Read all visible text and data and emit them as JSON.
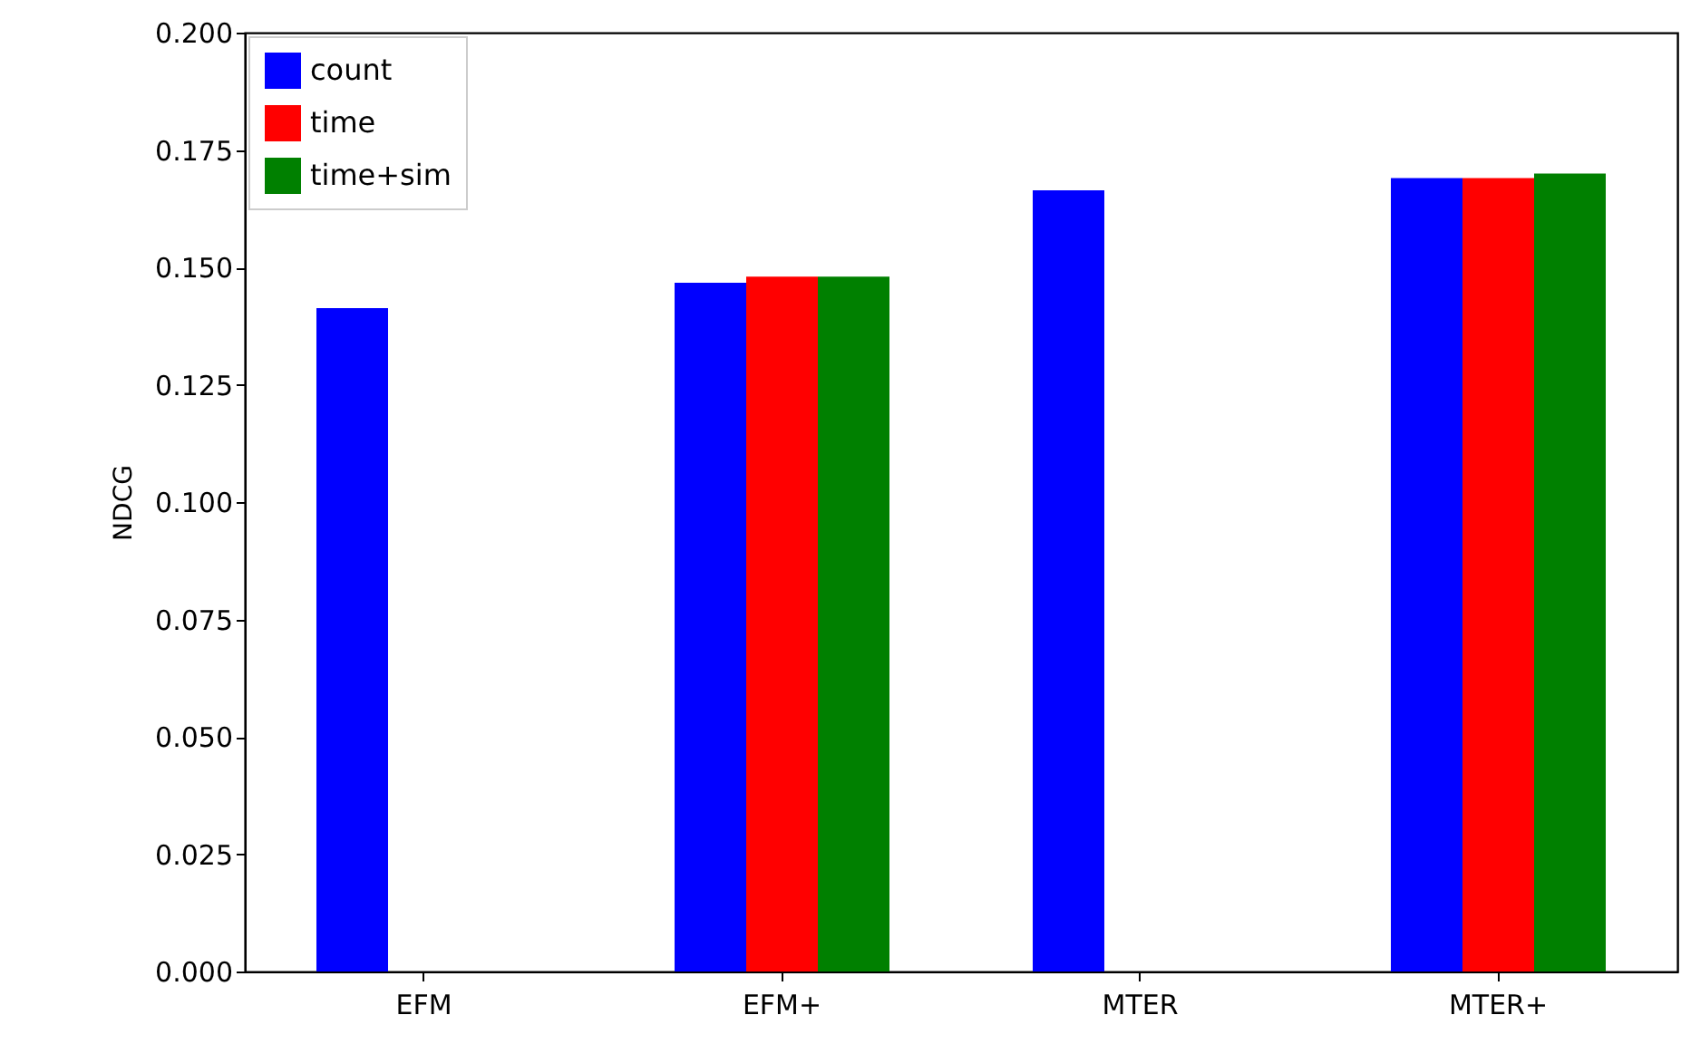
{
  "chart_data": {
    "type": "bar",
    "ylabel": "NDCG",
    "categories": [
      "EFM",
      "EFM+",
      "MTER",
      "MTER+"
    ],
    "series": [
      {
        "name": "count",
        "color": "#0000ff",
        "values": [
          0.1413,
          0.1467,
          0.1664,
          0.169
        ]
      },
      {
        "name": "time",
        "color": "#ff0000",
        "values": [
          null,
          0.148,
          null,
          0.169
        ]
      },
      {
        "name": "time+sim",
        "color": "#008000",
        "values": [
          null,
          0.148,
          null,
          0.17
        ]
      }
    ],
    "ylim": [
      0,
      0.2
    ],
    "yticks": [
      {
        "value": 0,
        "label": "0.000"
      },
      {
        "value": 0.025,
        "label": "0.025"
      },
      {
        "value": 0.05,
        "label": "0.050"
      },
      {
        "value": 0.075,
        "label": "0.075"
      },
      {
        "value": 0.1,
        "label": "0.100"
      },
      {
        "value": 0.125,
        "label": "0.125"
      },
      {
        "value": 0.15,
        "label": "0.150"
      },
      {
        "value": 0.175,
        "label": "0.175"
      },
      {
        "value": 0.2,
        "label": "0.200"
      }
    ],
    "legend": "top left",
    "grid": false
  }
}
